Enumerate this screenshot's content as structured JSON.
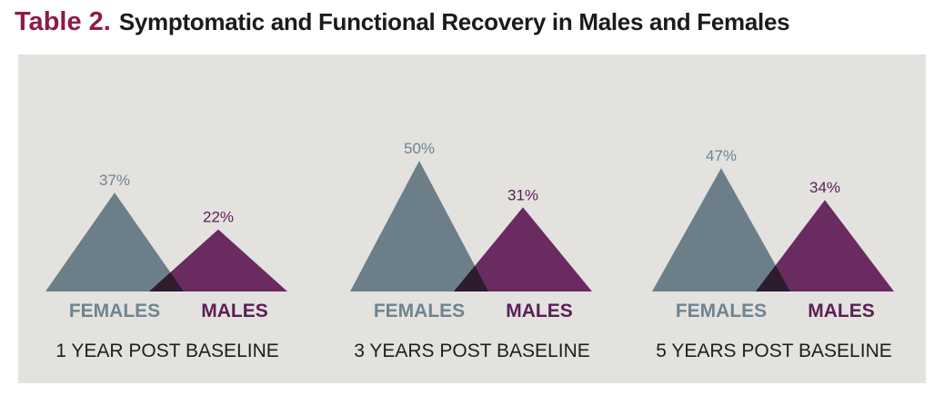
{
  "header": {
    "prefix": "Table 2.",
    "title": "Symptomatic and Functional Recovery in Males and Females"
  },
  "colors": {
    "females": "#6c7f89",
    "males": "#6a2b61",
    "overlap": "#2c1c2d",
    "females_label": "#6f8490",
    "males_label": "#5b1f54",
    "background": "#e3e2df"
  },
  "chart_data": {
    "type": "area",
    "title": "Symptomatic and Functional Recovery in Males and Females",
    "series": [
      {
        "name": "FEMALES",
        "values": [
          37,
          50,
          47
        ]
      },
      {
        "name": "MALES",
        "values": [
          22,
          31,
          34
        ]
      }
    ],
    "groups": [
      {
        "label": "1 YEAR POST BASELINE",
        "females": 37,
        "males": 22,
        "females_text": "37%",
        "males_text": "22%"
      },
      {
        "label": "3 YEARS POST BASELINE",
        "females": 50,
        "males": 31,
        "females_text": "50%",
        "males_text": "31%"
      },
      {
        "label": "5 YEARS POST BASELINE",
        "females": 47,
        "males": 34,
        "females_text": "47%",
        "males_text": "34%"
      }
    ],
    "category_labels": {
      "females": "FEMALES",
      "males": "MALES"
    },
    "grid": false
  }
}
